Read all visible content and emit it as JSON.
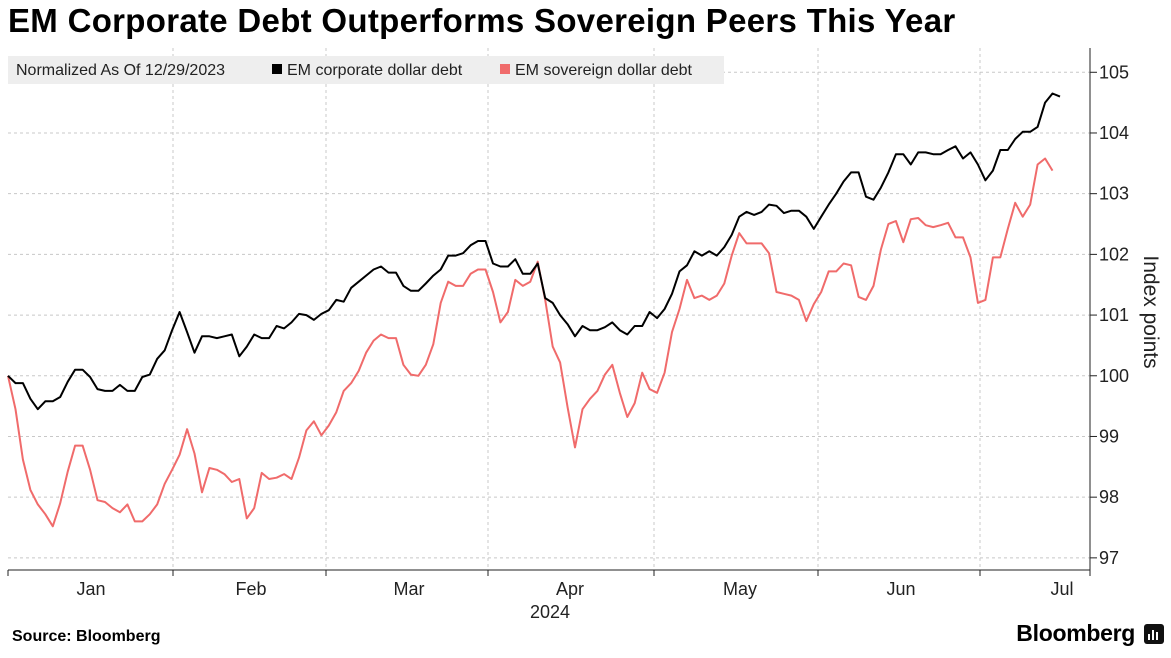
{
  "title": "EM Corporate Debt Outperforms Sovereign Peers This Year",
  "legend": {
    "note": "Normalized As Of 12/29/2023",
    "series1": "EM corporate dollar debt",
    "series2": "EM sovereign dollar debt"
  },
  "source": "Source: Bloomberg",
  "brand": "Bloomberg",
  "colors": {
    "corporate": "#000000",
    "sovereign": "#f06b6b",
    "grid": "#c8c8c8",
    "legend_bg": "#eeeeee"
  },
  "chart_data": {
    "type": "line",
    "title": "EM Corporate Debt Outperforms Sovereign Peers This Year",
    "xlabel": "2024",
    "ylabel": "Index points",
    "ylim": [
      96.8,
      105.4
    ],
    "y_ticks": [
      97,
      98,
      99,
      100,
      101,
      102,
      103,
      104,
      105
    ],
    "x_ticks": [
      "Jan",
      "Feb",
      "Mar",
      "Apr",
      "May",
      "Jun",
      "Jul"
    ],
    "x_year_label": "2024",
    "series": [
      {
        "name": "EM corporate dollar debt",
        "values": [
          100.0,
          99.88,
          99.88,
          99.62,
          99.45,
          99.58,
          99.58,
          99.65,
          99.9,
          100.1,
          100.1,
          99.98,
          99.78,
          99.75,
          99.75,
          99.85,
          99.75,
          99.75,
          99.98,
          100.02,
          100.28,
          100.42,
          100.75,
          101.05,
          100.72,
          100.38,
          100.65,
          100.65,
          100.62,
          100.65,
          100.68,
          100.32,
          100.48,
          100.68,
          100.62,
          100.62,
          100.82,
          100.78,
          100.88,
          101.02,
          101.0,
          100.92,
          101.02,
          101.08,
          101.25,
          101.22,
          101.45,
          101.55,
          101.65,
          101.75,
          101.8,
          101.7,
          101.7,
          101.48,
          101.4,
          101.4,
          101.52,
          101.65,
          101.75,
          101.98,
          101.98,
          102.02,
          102.15,
          102.22,
          102.22,
          101.85,
          101.8,
          101.8,
          101.92,
          101.68,
          101.68,
          101.85,
          101.28,
          101.2,
          101.0,
          100.85,
          100.65,
          100.82,
          100.75,
          100.75,
          100.8,
          100.88,
          100.75,
          100.68,
          100.82,
          100.82,
          101.05,
          100.95,
          101.1,
          101.35,
          101.72,
          101.82,
          102.05,
          101.98,
          102.05,
          101.98,
          102.12,
          102.32,
          102.62,
          102.7,
          102.65,
          102.7,
          102.82,
          102.8,
          102.68,
          102.72,
          102.72,
          102.62,
          102.42,
          102.62,
          102.82,
          103.0,
          103.2,
          103.35,
          103.35,
          102.95,
          102.9,
          103.1,
          103.35,
          103.65,
          103.65,
          103.48,
          103.68,
          103.68,
          103.65,
          103.65,
          103.72,
          103.78,
          103.58,
          103.68,
          103.48,
          103.22,
          103.38,
          103.72,
          103.72,
          103.9,
          104.02,
          104.02,
          104.1,
          104.5,
          104.65,
          104.6
        ]
      },
      {
        "name": "EM sovereign dollar debt",
        "values": [
          100.0,
          99.45,
          98.62,
          98.12,
          97.88,
          97.72,
          97.52,
          97.9,
          98.42,
          98.85,
          98.85,
          98.45,
          97.95,
          97.92,
          97.82,
          97.75,
          97.88,
          97.6,
          97.6,
          97.72,
          97.88,
          98.22,
          98.45,
          98.7,
          99.12,
          98.72,
          98.08,
          98.48,
          98.45,
          98.38,
          98.25,
          98.3,
          97.65,
          97.82,
          98.4,
          98.3,
          98.32,
          98.38,
          98.3,
          98.65,
          99.1,
          99.25,
          99.02,
          99.18,
          99.4,
          99.75,
          99.88,
          100.08,
          100.38,
          100.58,
          100.68,
          100.62,
          100.62,
          100.18,
          100.02,
          100.0,
          100.18,
          100.52,
          101.2,
          101.55,
          101.48,
          101.48,
          101.68,
          101.75,
          101.75,
          101.38,
          100.88,
          101.05,
          101.58,
          101.48,
          101.55,
          101.88,
          101.25,
          100.48,
          100.22,
          99.48,
          98.82,
          99.45,
          99.62,
          99.75,
          100.02,
          100.18,
          99.72,
          99.32,
          99.55,
          100.05,
          99.78,
          99.72,
          100.05,
          100.72,
          101.1,
          101.58,
          101.28,
          101.32,
          101.25,
          101.32,
          101.52,
          101.98,
          102.35,
          102.18,
          102.18,
          102.18,
          102.02,
          101.38,
          101.35,
          101.32,
          101.25,
          100.9,
          101.18,
          101.38,
          101.72,
          101.72,
          101.85,
          101.82,
          101.3,
          101.25,
          101.48,
          102.08,
          102.5,
          102.55,
          102.2,
          102.58,
          102.6,
          102.48,
          102.45,
          102.48,
          102.52,
          102.28,
          102.28,
          101.95,
          101.2,
          101.25,
          101.95,
          101.95,
          102.42,
          102.85,
          102.62,
          102.82,
          103.48,
          103.58,
          103.38
        ]
      }
    ]
  }
}
